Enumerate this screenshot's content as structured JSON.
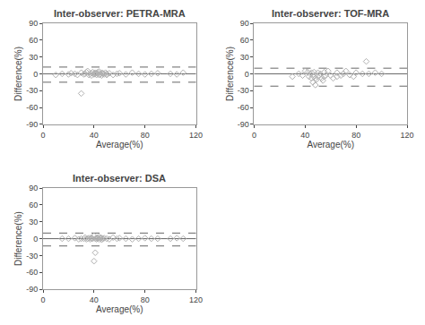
{
  "chart_data": [
    {
      "type": "scatter",
      "title": "Inter-observer: PETRA-MRA",
      "x": [
        10,
        15,
        20,
        22,
        25,
        27,
        30,
        30,
        32,
        33,
        34,
        35,
        36,
        37,
        38,
        38,
        39,
        40,
        40,
        41,
        41,
        42,
        42,
        43,
        43,
        44,
        44,
        45,
        45,
        46,
        46,
        47,
        47,
        48,
        49,
        50,
        50,
        52,
        55,
        58,
        60,
        65,
        70,
        75,
        80,
        85,
        90,
        100,
        105,
        110
      ],
      "values": [
        -2,
        0,
        -1,
        1,
        0,
        -2,
        -35,
        2,
        -1,
        0,
        3,
        5,
        -2,
        0,
        1,
        -3,
        3,
        0,
        -1,
        2,
        0,
        -2,
        1,
        0,
        3,
        -2,
        4,
        -1,
        0,
        2,
        -3,
        0,
        1,
        -1,
        2,
        0,
        -2,
        1,
        -2,
        0,
        1,
        -1,
        2,
        0,
        -1,
        0,
        1,
        0,
        -1,
        2
      ],
      "color": "#b0b0b0",
      "marker": "diamond-open",
      "reference_lines": [
        {
          "value": 0,
          "color": "#666666",
          "line_style": "solid"
        },
        {
          "value": 12,
          "color": "#666666",
          "line_style": "dashed"
        },
        {
          "value": -15,
          "color": "#666666",
          "line_style": "dashed"
        }
      ],
      "xlabel": "Average(%)",
      "ylabel": "Difference(%)",
      "xlim": [
        0,
        120
      ],
      "ylim": [
        -90,
        90
      ],
      "xticks": [
        0,
        40,
        80,
        120
      ],
      "yticks": [
        -90,
        -60,
        -30,
        0,
        30,
        60,
        90
      ],
      "grid": false
    },
    {
      "type": "scatter",
      "title": "Inter-observer: TOF-MRA",
      "x": [
        30,
        35,
        38,
        40,
        42,
        43,
        44,
        45,
        45,
        46,
        47,
        47,
        48,
        48,
        49,
        50,
        50,
        51,
        52,
        53,
        54,
        55,
        55,
        56,
        58,
        60,
        62,
        65,
        65,
        68,
        70,
        72,
        75,
        78,
        80,
        85,
        88,
        90,
        95,
        100
      ],
      "values": [
        -5,
        0,
        -3,
        5,
        3,
        -5,
        0,
        -8,
        2,
        -15,
        -5,
        3,
        -20,
        -8,
        -10,
        -5,
        2,
        -3,
        0,
        -8,
        -12,
        -5,
        3,
        -3,
        5,
        -3,
        -8,
        2,
        -5,
        -3,
        0,
        5,
        -2,
        -5,
        2,
        0,
        22,
        0,
        2,
        0
      ],
      "color": "#b0b0b0",
      "marker": "diamond-open",
      "reference_lines": [
        {
          "value": 0,
          "color": "#666666",
          "line_style": "solid"
        },
        {
          "value": 10,
          "color": "#666666",
          "line_style": "dashed"
        },
        {
          "value": -22,
          "color": "#666666",
          "line_style": "dashed"
        }
      ],
      "xlabel": "Average(%)",
      "ylabel": "Difference(%)",
      "xlim": [
        0,
        120
      ],
      "ylim": [
        -90,
        90
      ],
      "xticks": [
        0,
        40,
        80,
        120
      ],
      "yticks": [
        -90,
        -60,
        -30,
        0,
        30,
        60,
        90
      ],
      "grid": false
    },
    {
      "type": "scatter",
      "title": "Inter-observer: DSA",
      "x": [
        15,
        20,
        25,
        28,
        30,
        32,
        33,
        34,
        35,
        36,
        37,
        38,
        38,
        39,
        40,
        40,
        41,
        41,
        42,
        42,
        43,
        43,
        44,
        44,
        45,
        45,
        46,
        46,
        47,
        48,
        50,
        52,
        55,
        58,
        60,
        65,
        70,
        75,
        80,
        85,
        90,
        100,
        105,
        110
      ],
      "values": [
        0,
        0,
        1,
        -1,
        0,
        0,
        2,
        -1,
        0,
        1,
        -1,
        0,
        2,
        0,
        5,
        -40,
        0,
        -25,
        1,
        -1,
        2,
        0,
        -1,
        3,
        0,
        2,
        1,
        -2,
        0,
        1,
        0,
        -1,
        2,
        0,
        1,
        0,
        -1,
        0,
        1,
        0,
        0,
        0,
        1,
        0
      ],
      "color": "#b0b0b0",
      "marker": "diamond-open",
      "reference_lines": [
        {
          "value": 0,
          "color": "#666666",
          "line_style": "solid"
        },
        {
          "value": 10,
          "color": "#666666",
          "line_style": "dashed"
        },
        {
          "value": -13,
          "color": "#666666",
          "line_style": "dashed"
        }
      ],
      "xlabel": "Average(%)",
      "ylabel": "Difference(%)",
      "xlim": [
        0,
        120
      ],
      "ylim": [
        -90,
        90
      ],
      "xticks": [
        0,
        40,
        80,
        120
      ],
      "yticks": [
        -90,
        -60,
        -30,
        0,
        30,
        60,
        90
      ],
      "grid": false
    }
  ]
}
